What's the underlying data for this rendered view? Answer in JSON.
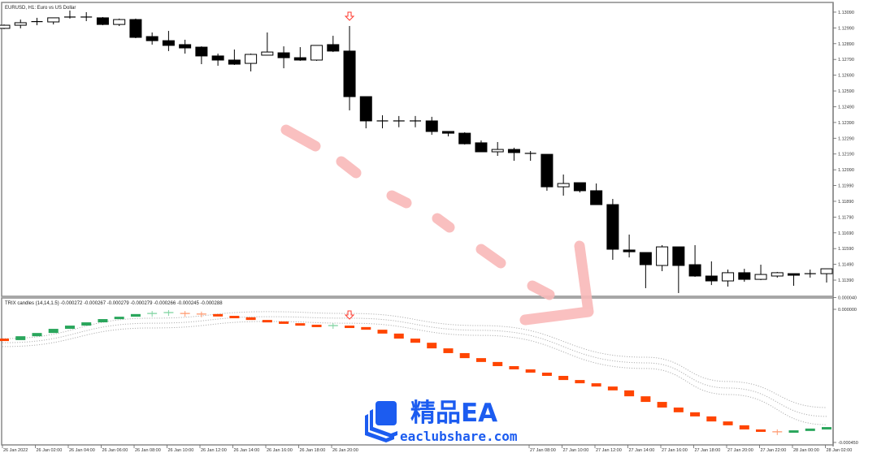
{
  "main_pane": {
    "title": "EURUSD, H1:  Euro vs US Dollar",
    "price_axis_labels": [
      "1.13090",
      "1.12990",
      "1.12890",
      "1.12790",
      "1.12690",
      "1.12590",
      "1.12490",
      "1.12390",
      "1.12290",
      "1.12190",
      "1.12090",
      "1.11990",
      "1.11890",
      "1.11790",
      "1.11690",
      "1.11590",
      "1.11490",
      "1.11390"
    ],
    "bull_color": "#ffffff",
    "bear_color": "#000000",
    "signal_arrow_color": "#ff3b30",
    "signal_candle": 22
  },
  "indicator_pane": {
    "title": "TRIX candles (14,14,1.5) -0.000272 -0.000267 -0.000279 -0.000279 -0.000266 -0.000245 -0.000288",
    "axis_labels": [
      "0.000040",
      "0.000000",
      "-0.000450"
    ],
    "up_color": "#2aa65c",
    "down_color": "#ff4500",
    "weak_up_color": "#7fd3a0",
    "weak_down_color": "#ff9a70",
    "band_color": "#b0b0b0"
  },
  "time_axis_labels": [
    "26 Jan 2022",
    "26 Jan 02:00",
    "26 Jan 04:00",
    "26 Jan 06:00",
    "26 Jan 08:00",
    "26 Jan 10:00",
    "26 Jan 12:00",
    "26 Jan 14:00",
    "26 Jan 16:00",
    "26 Jan 18:00",
    "26 Jan 20:00",
    "27 Jan 08:00",
    "27 Jan 10:00",
    "27 Jan 12:00",
    "27 Jan 14:00",
    "27 Jan 16:00",
    "27 Jan 18:00",
    "27 Jan 20:00",
    "27 Jan 22:00",
    "28 Jan 00:00",
    "28 Jan 02:00"
  ],
  "annotation": {
    "type": "dashed-arrow-down-right",
    "color": "#f9b9b9"
  },
  "watermark": {
    "text_cn": "精品EA",
    "url": "eaclubshare.com",
    "color": "#1c5cf0"
  },
  "chart_data": [
    {
      "type": "candlestick",
      "title": "EURUSD, H1:  Euro vs US Dollar",
      "ylim": [
        1.1129,
        1.1315
      ],
      "ohlc": [
        [
          1.12987,
          1.13012,
          1.12982,
          1.13007
        ],
        [
          1.13007,
          1.13043,
          1.12987,
          1.13023
        ],
        [
          1.13028,
          1.13054,
          1.13007,
          1.1303
        ],
        [
          1.13028,
          1.13054,
          1.13012,
          1.13054
        ],
        [
          1.13057,
          1.131,
          1.13049,
          1.13059
        ],
        [
          1.13059,
          1.1309,
          1.13033,
          1.13057
        ],
        [
          1.13054,
          1.13059,
          1.13007,
          1.13012
        ],
        [
          1.13012,
          1.13049,
          1.13002,
          1.13043
        ],
        [
          1.13043,
          1.13049,
          1.12925,
          1.1293
        ],
        [
          1.12935,
          1.12961,
          1.12884,
          1.12909
        ],
        [
          1.12909,
          1.12971,
          1.12843,
          1.12879
        ],
        [
          1.12884,
          1.12915,
          1.12827,
          1.12863
        ],
        [
          1.12868,
          1.12873,
          1.1276,
          1.12812
        ],
        [
          1.12812,
          1.12827,
          1.1275,
          1.12786
        ],
        [
          1.12786,
          1.12853,
          1.12755,
          1.1276
        ],
        [
          1.12765,
          1.12827,
          1.12714,
          1.12822
        ],
        [
          1.12817,
          1.12961,
          1.12817,
          1.12837
        ],
        [
          1.12832,
          1.12873,
          1.12734,
          1.12801
        ],
        [
          1.12801,
          1.12868,
          1.12781,
          1.12786
        ],
        [
          1.12786,
          1.12879,
          1.12781,
          1.12879
        ],
        [
          1.12884,
          1.1294,
          1.12837,
          1.12843
        ],
        [
          1.12843,
          1.13002,
          1.12467,
          1.12554
        ],
        [
          1.12554,
          1.12554,
          1.12353,
          1.124
        ],
        [
          1.124,
          1.12436,
          1.12353,
          1.124
        ],
        [
          1.124,
          1.12431,
          1.1236,
          1.124
        ],
        [
          1.124,
          1.12431,
          1.1236,
          1.124
        ],
        [
          1.124,
          1.12426,
          1.12312,
          1.12333
        ],
        [
          1.12333,
          1.12333,
          1.12302,
          1.12322
        ],
        [
          1.12322,
          1.12328,
          1.1225,
          1.12255
        ],
        [
          1.12261,
          1.12276,
          1.12204,
          1.12204
        ],
        [
          1.12204,
          1.12266,
          1.12178,
          1.12219
        ],
        [
          1.12219,
          1.1223,
          1.12147,
          1.12199
        ],
        [
          1.12194,
          1.12209,
          1.12147,
          1.12188
        ],
        [
          1.12188,
          1.12188,
          1.11957,
          1.11982
        ],
        [
          1.11982,
          1.1206,
          1.11926,
          1.12003
        ],
        [
          1.12008,
          1.12008,
          1.11946,
          1.11957
        ],
        [
          1.11957,
          1.12003,
          1.11869,
          1.11869
        ],
        [
          1.11869,
          1.11905,
          1.11519,
          1.11586
        ],
        [
          1.11581,
          1.11679,
          1.11534,
          1.1157
        ],
        [
          1.11565,
          1.11565,
          1.11339,
          1.11488
        ],
        [
          1.11483,
          1.11612,
          1.11447,
          1.11601
        ],
        [
          1.11601,
          1.11601,
          1.11308,
          1.11483
        ],
        [
          1.11488,
          1.11612,
          1.11411,
          1.11416
        ],
        [
          1.11416,
          1.11509,
          1.11359,
          1.11385
        ],
        [
          1.11385,
          1.11457,
          1.11349,
          1.11437
        ],
        [
          1.11437,
          1.11462,
          1.1138,
          1.11395
        ],
        [
          1.11395,
          1.11488,
          1.1139,
          1.11426
        ],
        [
          1.11416,
          1.11442,
          1.11406,
          1.11437
        ],
        [
          1.11431,
          1.11431,
          1.11354,
          1.11421
        ],
        [
          1.11431,
          1.11457,
          1.11406,
          1.11431
        ],
        [
          1.11431,
          1.11462,
          1.11375,
          1.11462
        ]
      ]
    },
    {
      "type": "candlestick-indicator",
      "title": "TRIX candles (14,14,1.5)",
      "ylim": [
        -0.00045,
        4e-05
      ],
      "values": [
        -0.000104,
        -9.1e-05,
        -8e-05,
        -6.6e-05,
        -5.5e-05,
        -4.4e-05,
        -3.3e-05,
        -2.5e-05,
        -1.6e-05,
        -1.4e-05,
        -1.1e-05,
        -1.4e-05,
        -1.6e-05,
        -2.2e-05,
        -2.7e-05,
        -3.6e-05,
        -4.1e-05,
        -4.7e-05,
        -5.2e-05,
        -5.5e-05,
        -5.5e-05,
        -6e-05,
        -6.9e-05,
        -8.2e-05,
        -9.9e-05,
        -0.000113,
        -0.000132,
        -0.000148,
        -0.000165,
        -0.000178,
        -0.000192,
        -0.000203,
        -0.000214,
        -0.000225,
        -0.000239,
        -0.00025,
        -0.000261,
        -0.000274,
        -0.000294,
        -0.000313,
        -0.000332,
        -0.000348,
        -0.000362,
        -0.000379,
        -0.000392,
        -0.000406,
        -0.000412,
        -0.000414,
        -0.000409,
        -0.000403,
        -0.000398
      ],
      "bands": {
        "candle_index": [
          1,
          10,
          17,
          22,
          30,
          40,
          45,
          51
        ],
        "upper": [
          -9.9e-05,
          -3e-05,
          -8e-06,
          -1.4e-05,
          -5.5e-05,
          -0.000162,
          -0.000244,
          -0.000332
        ],
        "middle": [
          -0.000113,
          -4.7e-05,
          -2.5e-05,
          -3e-05,
          -7.1e-05,
          -0.000181,
          -0.000266,
          -0.000362
        ],
        "lower": [
          -0.000126,
          -6.3e-05,
          -4.1e-05,
          -4.7e-05,
          -8.8e-05,
          -0.0002,
          -0.000288,
          -0.00039
        ]
      }
    }
  ]
}
